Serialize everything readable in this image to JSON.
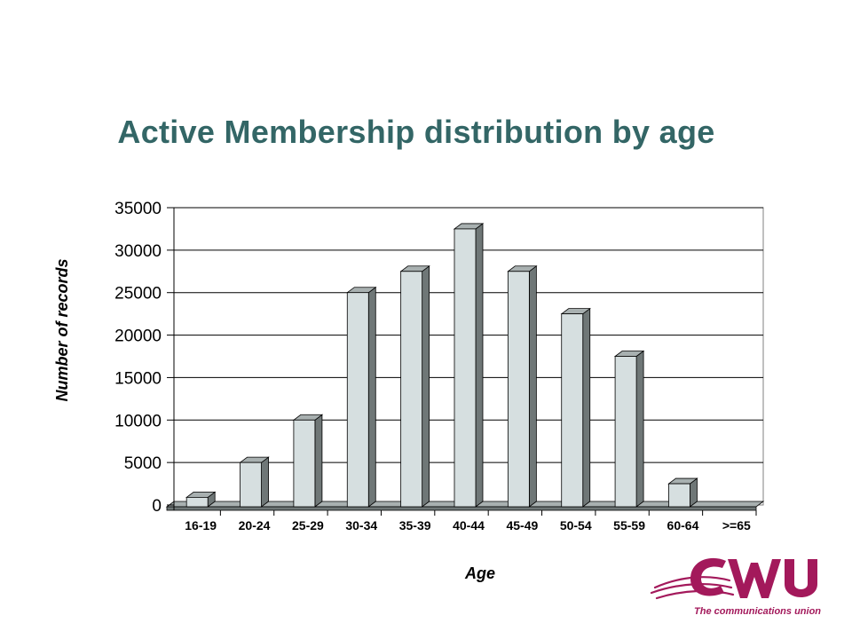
{
  "slide": {
    "title": "Active Membership distribution by age"
  },
  "logo": {
    "letters": "CWU",
    "tagline": "The communications union",
    "color": "#a3195b"
  },
  "colors": {
    "title": "#336666",
    "bar_front": "#d6dfe0",
    "bar_top": "#a8b0b0",
    "bar_side": "#6f7777",
    "gridline": "#000000"
  },
  "chart_data": {
    "type": "bar",
    "style": "3d",
    "categories": [
      "16-19",
      "20-24",
      "25-29",
      "30-34",
      "35-39",
      "40-44",
      "45-49",
      "50-54",
      "55-59",
      "60-64",
      ">=65"
    ],
    "values": [
      900,
      5000,
      10000,
      25000,
      27500,
      32500,
      27500,
      22500,
      17500,
      2500,
      0
    ],
    "title": "",
    "xlabel": "Age",
    "ylabel": "Number of records",
    "ylim": [
      0,
      35000
    ],
    "yticks": [
      0,
      5000,
      10000,
      15000,
      20000,
      25000,
      30000,
      35000
    ],
    "grid": true,
    "legend": false
  }
}
